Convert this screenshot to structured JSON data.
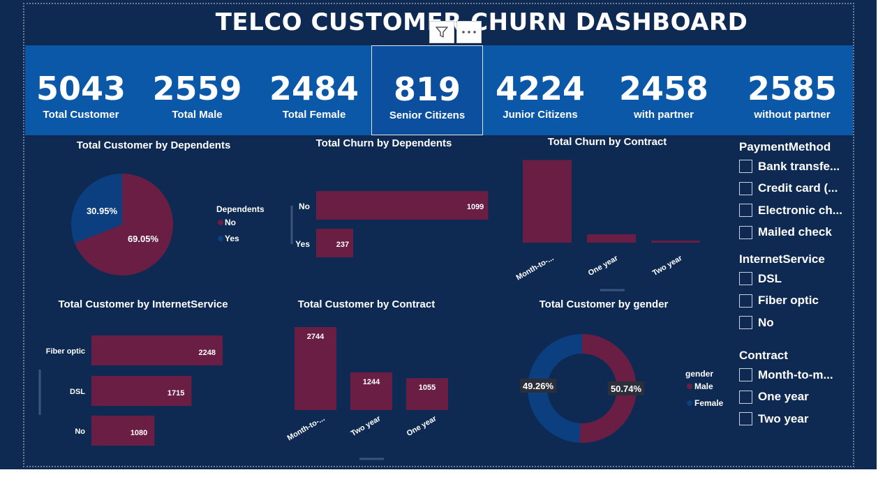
{
  "title": "TELCO CUSTOMER CHURN DASHBOARD",
  "colors": {
    "primary": "#6b1e44",
    "secondary": "#0b3f7f",
    "kpi_bg": "#0b58a8",
    "canvas": "#0e2a52"
  },
  "kpis": [
    {
      "value": "5043",
      "label": "Total Customer"
    },
    {
      "value": "2559",
      "label": "Total Male"
    },
    {
      "value": "2484",
      "label": "Total Female"
    },
    {
      "value": "819",
      "label": "Senior Citizens"
    },
    {
      "value": "4224",
      "label": "Junior Citizens"
    },
    {
      "value": "2458",
      "label": "with partner"
    },
    {
      "value": "2585",
      "label": "without partner"
    }
  ],
  "header_icons": [
    "filter-icon",
    "more-options-icon"
  ],
  "chart_data": [
    {
      "id": "dependents_pie",
      "type": "pie",
      "title": "Total Customer by Dependents",
      "legend_title": "Dependents",
      "legend_position": "right",
      "categories": [
        "No",
        "Yes"
      ],
      "values": [
        69.05,
        30.95
      ],
      "data_labels": [
        "69.05%",
        "30.95%"
      ]
    },
    {
      "id": "churn_dependents",
      "type": "bar",
      "orientation": "horizontal",
      "title": "Total Churn by Dependents",
      "categories": [
        "No",
        "Yes"
      ],
      "values": [
        1099,
        237
      ],
      "xlim": [
        0,
        1160
      ]
    },
    {
      "id": "churn_contract",
      "type": "bar",
      "orientation": "vertical",
      "title": "Total Churn by Contract",
      "categories": [
        "Month-to-...",
        "One year",
        "Two year"
      ],
      "values": [
        1180,
        120,
        30
      ],
      "ylim": [
        0,
        1350
      ]
    },
    {
      "id": "internet_service",
      "type": "bar",
      "orientation": "horizontal",
      "title": "Total Customer by InternetService",
      "categories": [
        "Fiber optic",
        "DSL",
        "No"
      ],
      "values": [
        2248,
        1715,
        1080
      ],
      "xlim": [
        0,
        2320
      ]
    },
    {
      "id": "customer_contract",
      "type": "bar",
      "orientation": "vertical",
      "title": "Total Customer by Contract",
      "categories": [
        "Month-to-...",
        "Two year",
        "One year"
      ],
      "values": [
        2744,
        1244,
        1055
      ],
      "ylim": [
        0,
        3200
      ]
    },
    {
      "id": "gender_donut",
      "type": "pie",
      "variant": "donut",
      "title": "Total Customer by gender",
      "legend_title": "gender",
      "legend_position": "right",
      "categories": [
        "Male",
        "Female"
      ],
      "values": [
        50.74,
        49.26
      ],
      "data_labels": [
        "50.74%",
        "49.26%"
      ]
    }
  ],
  "slicers": [
    {
      "title": "PaymentMethod",
      "items": [
        "Bank transfe...",
        "Credit card (...",
        "Electronic ch...",
        "Mailed check"
      ]
    },
    {
      "title": "InternetService",
      "items": [
        "DSL",
        "Fiber optic",
        "No"
      ]
    },
    {
      "title": "Contract",
      "items": [
        "Month-to-m...",
        "One year",
        "Two year"
      ]
    }
  ]
}
